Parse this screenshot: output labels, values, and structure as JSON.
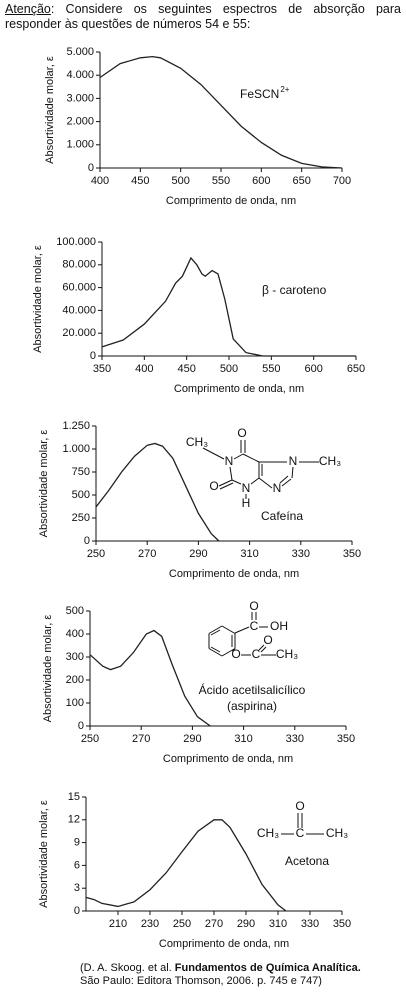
{
  "header": {
    "label": "Atenção",
    "text": ": Considere os seguintes espectros de absorção para responder às questões de números 54 e 55:"
  },
  "source": {
    "prefix": "(D. A. Skoog. et al.",
    "title": "Fundamentos de Química Analítica.",
    "suffix": "São Paulo: Editora Thomson, 2006. p. 745 e 747)"
  },
  "chart_data": [
    {
      "type": "line",
      "xlabel": "Comprimento de onda, nm",
      "ylabel": "Absortividade molar, ε",
      "color": "#222",
      "x": [
        400,
        425,
        450,
        465,
        475,
        500,
        525,
        550,
        575,
        600,
        625,
        650,
        675,
        700
      ],
      "values": [
        3900,
        4500,
        4750,
        4800,
        4750,
        4300,
        3600,
        2700,
        1800,
        1100,
        550,
        200,
        50,
        0
      ],
      "xlim": [
        400,
        700
      ],
      "ylim": [
        0,
        5000
      ],
      "xticks": [
        400,
        450,
        500,
        550,
        600,
        650,
        700
      ],
      "yticks": [
        0,
        {
          "value": 1000,
          "label": "1.000"
        },
        {
          "value": 2000,
          "label": "2.000"
        },
        {
          "value": 3000,
          "label": "3.000"
        },
        {
          "value": 4000,
          "label": "4.000"
        },
        {
          "value": 5000,
          "label": "5.000"
        }
      ],
      "annotations": [
        "FeSCN",
        "2+"
      ],
      "structure": []
    },
    {
      "type": "line",
      "xlabel": "Comprimento de onda, nm",
      "ylabel": "Absortividade molar, ε",
      "color": "#222",
      "x": [
        350,
        375,
        400,
        425,
        437,
        445,
        455,
        462,
        468,
        472,
        480,
        487,
        495,
        505,
        520,
        540,
        650
      ],
      "values": [
        8000,
        14000,
        28000,
        48000,
        64000,
        70000,
        86000,
        80000,
        72000,
        70000,
        75000,
        72000,
        50000,
        15000,
        3000,
        0,
        0
      ],
      "xlim": [
        350,
        650
      ],
      "ylim": [
        0,
        100000
      ],
      "xticks": [
        350,
        400,
        450,
        500,
        550,
        600,
        650
      ],
      "yticks": [
        0,
        {
          "value": 20000,
          "label": "20.000"
        },
        {
          "value": 40000,
          "label": "40.000"
        },
        {
          "value": 60000,
          "label": "60.000"
        },
        {
          "value": 80000,
          "label": "80.000"
        },
        {
          "value": 100000,
          "label": "100.000"
        }
      ],
      "annotations": [
        "β - caroteno"
      ],
      "structure": []
    },
    {
      "type": "line",
      "xlabel": "Comprimento de onda, nm",
      "ylabel": "Absortividade molar, ε",
      "color": "#222",
      "x": [
        250,
        255,
        260,
        265,
        270,
        273,
        276,
        280,
        285,
        290,
        295,
        298
      ],
      "values": [
        370,
        550,
        750,
        920,
        1040,
        1060,
        1030,
        900,
        600,
        300,
        80,
        0
      ],
      "xlim": [
        250,
        350
      ],
      "ylim": [
        0,
        1250
      ],
      "xticks": [
        250,
        270,
        290,
        310,
        330,
        350
      ],
      "yticks": [
        0,
        250,
        500,
        750,
        {
          "value": 1000,
          "label": "1.000"
        },
        {
          "value": 1250,
          "label": "1.250"
        }
      ],
      "annotations": [
        "Cafeína"
      ],
      "structure": [
        "CH₃",
        "O",
        "N",
        "N",
        "CH₃",
        "O",
        "N",
        "N",
        "H"
      ]
    },
    {
      "type": "line",
      "xlabel": "Comprimento de onda, nm",
      "ylabel": "Absortividade molar, ε",
      "color": "#222",
      "x": [
        250,
        255,
        258,
        262,
        267,
        272,
        275,
        278,
        282,
        287,
        292,
        297
      ],
      "values": [
        310,
        260,
        245,
        260,
        320,
        400,
        415,
        390,
        270,
        130,
        40,
        0
      ],
      "xlim": [
        250,
        350
      ],
      "ylim": [
        0,
        500
      ],
      "xticks": [
        250,
        270,
        290,
        310,
        330,
        350
      ],
      "yticks": [
        0,
        100,
        200,
        300,
        400,
        500
      ],
      "annotations": [
        "Ácido acetilsalicílico",
        "(aspirina)"
      ],
      "structure": [
        "O",
        "C",
        "OH",
        "O",
        "C",
        "O",
        "CH₃"
      ]
    },
    {
      "type": "line",
      "xlabel": "Comprimento de onda, nm",
      "ylabel": "Absortividade molar, ε",
      "color": "#222",
      "x": [
        190,
        195,
        200,
        210,
        220,
        230,
        240,
        250,
        260,
        270,
        275,
        280,
        290,
        300,
        310,
        315
      ],
      "values": [
        1.8,
        1.5,
        1,
        0.6,
        1.2,
        2.8,
        5,
        7.8,
        10.5,
        12,
        12,
        11,
        7.5,
        3.5,
        0.8,
        0
      ],
      "xlim": [
        190,
        350
      ],
      "ylim": [
        0,
        15
      ],
      "xticks": [
        210,
        230,
        250,
        270,
        290,
        310,
        330,
        350
      ],
      "yticks": [
        0,
        3,
        6,
        9,
        12,
        15
      ],
      "annotations": [
        "Acetona"
      ],
      "structure": [
        "O",
        "CH₃",
        "C",
        "CH₃"
      ]
    }
  ]
}
